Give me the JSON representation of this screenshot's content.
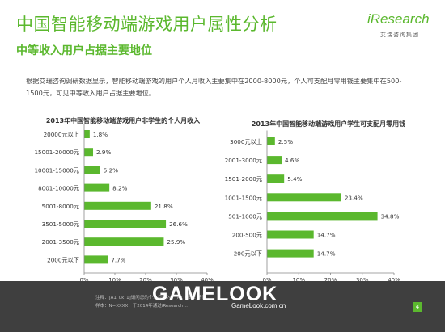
{
  "header": {
    "title": "中国智能移动端游戏用户属性分析",
    "subtitle": "中等收入用户占据主要地位",
    "logo_text": "iResearch",
    "logo_sub": "艾瑞咨询集团"
  },
  "description": "根据艾瑞咨询调研数据显示，智能移动端游戏的用户个人月收入主要集中在2000-8000元，个人可支配月零用钱主要集中在500-1500元，可见中等收入用户占据主要地位。",
  "colors": {
    "accent": "#5bb82e",
    "bar": "#5bb82e"
  },
  "chart_data": [
    {
      "type": "bar",
      "orientation": "horizontal",
      "title": "2013年中国智能移动端游戏用户非学生的个人月收入",
      "categories": [
        "20000元以上",
        "15001-20000元",
        "10001-15000元",
        "8001-10000元",
        "5001-8000元",
        "3501-5000元",
        "2001-3500元",
        "2000元以下"
      ],
      "values": [
        1.8,
        2.9,
        5.2,
        8.2,
        21.8,
        26.6,
        25.9,
        7.7
      ],
      "value_labels": [
        "1.8%",
        "2.9%",
        "5.2%",
        "8.2%",
        "21.8%",
        "26.6%",
        "25.9%",
        "7.7%"
      ],
      "xlim": [
        0,
        40
      ],
      "xticks": [
        "0%",
        "10%",
        "20%",
        "30%",
        "40%"
      ],
      "legend": "占比（%）",
      "grid": false
    },
    {
      "type": "bar",
      "orientation": "horizontal",
      "title": "2013年中国智能移动端游戏用户学生可支配月零用钱",
      "categories": [
        "3000元以上",
        "2001-3000元",
        "1501-2000元",
        "1001-1500元",
        "501-1000元",
        "200-500元",
        "200元以下"
      ],
      "values": [
        2.5,
        4.6,
        5.4,
        23.4,
        34.8,
        14.7,
        14.7
      ],
      "value_labels": [
        "2.5%",
        "4.6%",
        "5.4%",
        "23.4%",
        "34.8%",
        "14.7%",
        "14.7%"
      ],
      "xlim": [
        0,
        40
      ],
      "xticks": [
        "0%",
        "10%",
        "20%",
        "30%",
        "40%"
      ],
      "legend": "占比（%）",
      "grid": false
    }
  ],
  "footer": {
    "notes_line1": "注释：[A1_0k_1]请问您的个人月收入？[A1_0k_2]请问…",
    "notes_line2": "样本：N=XXXX，于2014年通过iResearch…",
    "watermark_brand": "GAMELOOK",
    "watermark_url": "GameLook.com.cn",
    "page_number": "4"
  }
}
